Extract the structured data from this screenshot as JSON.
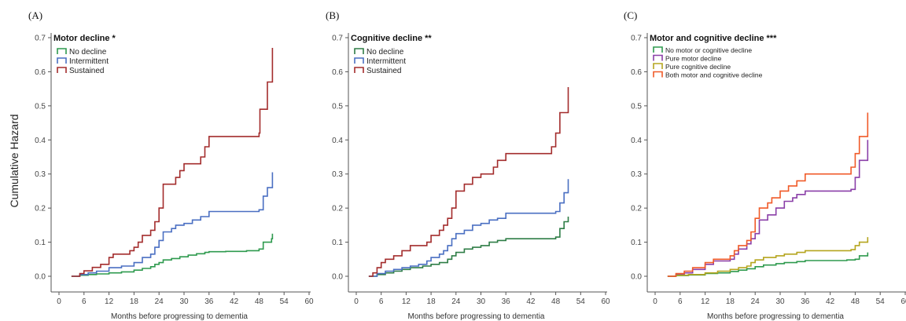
{
  "y_axis_label": "Cumulative Hazard",
  "chart_data": [
    {
      "type": "line",
      "step": true,
      "panel": "(A)",
      "legend_title": "Motor decline *",
      "xlabel": "Months before progressing to dementia",
      "ylabel": "Cumulative Hazard",
      "xlim": [
        0,
        60
      ],
      "ylim": [
        0,
        0.7
      ],
      "x_ticks": [
        0,
        6,
        12,
        18,
        24,
        30,
        36,
        42,
        48,
        54,
        60
      ],
      "y_ticks": [
        0.0,
        0.1,
        0.2,
        0.3,
        0.4,
        0.5,
        0.6,
        0.7
      ],
      "series": [
        {
          "name": "No decline",
          "color": "#2e9a4e",
          "points": [
            [
              3,
              0
            ],
            [
              5,
              0.003
            ],
            [
              7,
              0.005
            ],
            [
              9,
              0.007
            ],
            [
              12,
              0.01
            ],
            [
              15,
              0.013
            ],
            [
              18,
              0.018
            ],
            [
              20,
              0.023
            ],
            [
              22,
              0.028
            ],
            [
              23,
              0.035
            ],
            [
              24,
              0.04
            ],
            [
              25,
              0.048
            ],
            [
              27,
              0.052
            ],
            [
              29,
              0.057
            ],
            [
              31,
              0.062
            ],
            [
              33,
              0.066
            ],
            [
              35,
              0.07
            ],
            [
              36,
              0.072
            ],
            [
              40,
              0.073
            ],
            [
              45,
              0.075
            ],
            [
              48,
              0.08
            ],
            [
              49,
              0.1
            ],
            [
              51,
              0.11
            ],
            [
              51.2,
              0.125
            ]
          ]
        },
        {
          "name": "Intermittent",
          "color": "#4a6fc2",
          "points": [
            [
              3,
              0
            ],
            [
              5,
              0.005
            ],
            [
              7,
              0.01
            ],
            [
              9,
              0.015
            ],
            [
              12,
              0.025
            ],
            [
              15,
              0.03
            ],
            [
              18,
              0.04
            ],
            [
              20,
              0.055
            ],
            [
              22,
              0.065
            ],
            [
              23,
              0.085
            ],
            [
              24,
              0.105
            ],
            [
              25,
              0.13
            ],
            [
              27,
              0.14
            ],
            [
              28,
              0.15
            ],
            [
              30,
              0.155
            ],
            [
              32,
              0.165
            ],
            [
              34,
              0.175
            ],
            [
              36,
              0.19
            ],
            [
              48,
              0.195
            ],
            [
              49,
              0.235
            ],
            [
              50,
              0.26
            ],
            [
              51,
              0.26
            ],
            [
              51.2,
              0.305
            ]
          ]
        },
        {
          "name": "Sustained",
          "color": "#a32c2c",
          "points": [
            [
              3,
              0
            ],
            [
              5,
              0.008
            ],
            [
              6,
              0.016
            ],
            [
              8,
              0.026
            ],
            [
              10,
              0.035
            ],
            [
              12,
              0.055
            ],
            [
              13,
              0.065
            ],
            [
              17,
              0.075
            ],
            [
              18,
              0.085
            ],
            [
              19,
              0.1
            ],
            [
              20,
              0.12
            ],
            [
              22,
              0.135
            ],
            [
              23,
              0.16
            ],
            [
              24,
              0.2
            ],
            [
              25,
              0.27
            ],
            [
              28,
              0.29
            ],
            [
              29,
              0.31
            ],
            [
              30,
              0.33
            ],
            [
              34,
              0.35
            ],
            [
              35,
              0.38
            ],
            [
              36,
              0.41
            ],
            [
              48,
              0.42
            ],
            [
              48.2,
              0.49
            ],
            [
              50,
              0.57
            ],
            [
              51.2,
              0.67
            ]
          ]
        }
      ]
    },
    {
      "type": "line",
      "step": true,
      "panel": "(B)",
      "legend_title": "Cognitive decline **",
      "xlabel": "Months before progressing to dementia",
      "ylabel": "",
      "xlim": [
        0,
        60
      ],
      "ylim": [
        0,
        0.7
      ],
      "x_ticks": [
        0,
        6,
        12,
        18,
        24,
        30,
        36,
        42,
        48,
        54,
        60
      ],
      "y_ticks": [
        0.0,
        0.1,
        0.2,
        0.3,
        0.4,
        0.5,
        0.6,
        0.7
      ],
      "series": [
        {
          "name": "No decline",
          "color": "#2e7d46",
          "points": [
            [
              3,
              0
            ],
            [
              5,
              0.005
            ],
            [
              7,
              0.01
            ],
            [
              9,
              0.015
            ],
            [
              11,
              0.02
            ],
            [
              13,
              0.025
            ],
            [
              16,
              0.03
            ],
            [
              18,
              0.035
            ],
            [
              20,
              0.04
            ],
            [
              22,
              0.05
            ],
            [
              23,
              0.06
            ],
            [
              24,
              0.07
            ],
            [
              26,
              0.08
            ],
            [
              28,
              0.085
            ],
            [
              30,
              0.09
            ],
            [
              32,
              0.1
            ],
            [
              34,
              0.105
            ],
            [
              36,
              0.11
            ],
            [
              48,
              0.115
            ],
            [
              49,
              0.14
            ],
            [
              50,
              0.16
            ],
            [
              51,
              0.175
            ]
          ]
        },
        {
          "name": "Intermittent",
          "color": "#4a6fc2",
          "points": [
            [
              3,
              0
            ],
            [
              5,
              0.008
            ],
            [
              7,
              0.015
            ],
            [
              9,
              0.02
            ],
            [
              11,
              0.025
            ],
            [
              13,
              0.03
            ],
            [
              15,
              0.035
            ],
            [
              17,
              0.045
            ],
            [
              18,
              0.055
            ],
            [
              20,
              0.065
            ],
            [
              21,
              0.075
            ],
            [
              22,
              0.09
            ],
            [
              23,
              0.11
            ],
            [
              24,
              0.125
            ],
            [
              26,
              0.135
            ],
            [
              28,
              0.15
            ],
            [
              30,
              0.155
            ],
            [
              32,
              0.165
            ],
            [
              34,
              0.17
            ],
            [
              36,
              0.185
            ],
            [
              48,
              0.19
            ],
            [
              49,
              0.215
            ],
            [
              50,
              0.245
            ],
            [
              51,
              0.285
            ]
          ]
        },
        {
          "name": "Sustained",
          "color": "#a32c2c",
          "points": [
            [
              3,
              0
            ],
            [
              4,
              0.01
            ],
            [
              5,
              0.025
            ],
            [
              6,
              0.04
            ],
            [
              7,
              0.05
            ],
            [
              9,
              0.06
            ],
            [
              11,
              0.075
            ],
            [
              13,
              0.09
            ],
            [
              17,
              0.1
            ],
            [
              18,
              0.12
            ],
            [
              20,
              0.135
            ],
            [
              21,
              0.15
            ],
            [
              22,
              0.17
            ],
            [
              23,
              0.2
            ],
            [
              24,
              0.25
            ],
            [
              26,
              0.27
            ],
            [
              28,
              0.29
            ],
            [
              30,
              0.3
            ],
            [
              33,
              0.32
            ],
            [
              34,
              0.34
            ],
            [
              36,
              0.36
            ],
            [
              47,
              0.38
            ],
            [
              48,
              0.42
            ],
            [
              49,
              0.48
            ],
            [
              51,
              0.555
            ]
          ]
        }
      ]
    },
    {
      "type": "line",
      "step": true,
      "panel": "(C)",
      "legend_title": "Motor and cognitive decline ***",
      "xlabel": "Months before progressing to dementia",
      "ylabel": "",
      "xlim": [
        0,
        60
      ],
      "ylim": [
        0,
        0.7
      ],
      "x_ticks": [
        0,
        6,
        12,
        18,
        24,
        30,
        36,
        42,
        48,
        54,
        60
      ],
      "y_ticks": [
        0.0,
        0.1,
        0.2,
        0.3,
        0.4,
        0.5,
        0.6,
        0.7
      ],
      "series": [
        {
          "name": "No motor or cognitive decline",
          "color": "#2e9a4e",
          "points": [
            [
              3,
              0
            ],
            [
              5,
              0.002
            ],
            [
              8,
              0.004
            ],
            [
              12,
              0.008
            ],
            [
              15,
              0.01
            ],
            [
              18,
              0.014
            ],
            [
              20,
              0.018
            ],
            [
              22,
              0.022
            ],
            [
              24,
              0.028
            ],
            [
              26,
              0.033
            ],
            [
              29,
              0.037
            ],
            [
              31,
              0.04
            ],
            [
              34,
              0.043
            ],
            [
              36,
              0.046
            ],
            [
              46,
              0.048
            ],
            [
              48,
              0.05
            ],
            [
              49,
              0.06
            ],
            [
              51,
              0.07
            ]
          ]
        },
        {
          "name": "Pure motor decline",
          "color": "#8a3fa8",
          "points": [
            [
              3,
              0
            ],
            [
              5,
              0.005
            ],
            [
              7,
              0.01
            ],
            [
              9,
              0.02
            ],
            [
              12,
              0.035
            ],
            [
              14,
              0.045
            ],
            [
              18,
              0.05
            ],
            [
              19,
              0.065
            ],
            [
              20,
              0.08
            ],
            [
              22,
              0.095
            ],
            [
              23,
              0.11
            ],
            [
              24,
              0.125
            ],
            [
              25,
              0.165
            ],
            [
              27,
              0.18
            ],
            [
              29,
              0.2
            ],
            [
              31,
              0.22
            ],
            [
              33,
              0.23
            ],
            [
              34,
              0.24
            ],
            [
              36,
              0.25
            ],
            [
              47,
              0.255
            ],
            [
              48,
              0.29
            ],
            [
              49,
              0.34
            ],
            [
              51,
              0.4
            ]
          ]
        },
        {
          "name": "Pure cognitive decline",
          "color": "#b5a51f",
          "points": [
            [
              3,
              0
            ],
            [
              5,
              0.003
            ],
            [
              8,
              0.005
            ],
            [
              12,
              0.01
            ],
            [
              15,
              0.015
            ],
            [
              18,
              0.02
            ],
            [
              20,
              0.025
            ],
            [
              22,
              0.03
            ],
            [
              23,
              0.04
            ],
            [
              24,
              0.048
            ],
            [
              26,
              0.055
            ],
            [
              29,
              0.06
            ],
            [
              31,
              0.065
            ],
            [
              34,
              0.07
            ],
            [
              36,
              0.075
            ],
            [
              47,
              0.078
            ],
            [
              48,
              0.09
            ],
            [
              49,
              0.1
            ],
            [
              51,
              0.115
            ]
          ]
        },
        {
          "name": "Both motor and cognitive decline",
          "color": "#f05a28",
          "points": [
            [
              3,
              0
            ],
            [
              5,
              0.008
            ],
            [
              7,
              0.015
            ],
            [
              9,
              0.025
            ],
            [
              12,
              0.04
            ],
            [
              14,
              0.05
            ],
            [
              18,
              0.06
            ],
            [
              19,
              0.075
            ],
            [
              20,
              0.09
            ],
            [
              22,
              0.105
            ],
            [
              23,
              0.13
            ],
            [
              24,
              0.17
            ],
            [
              25,
              0.2
            ],
            [
              27,
              0.215
            ],
            [
              28,
              0.23
            ],
            [
              30,
              0.25
            ],
            [
              32,
              0.265
            ],
            [
              34,
              0.28
            ],
            [
              36,
              0.3
            ],
            [
              47,
              0.32
            ],
            [
              48,
              0.36
            ],
            [
              49,
              0.41
            ],
            [
              51,
              0.48
            ]
          ]
        }
      ]
    }
  ]
}
